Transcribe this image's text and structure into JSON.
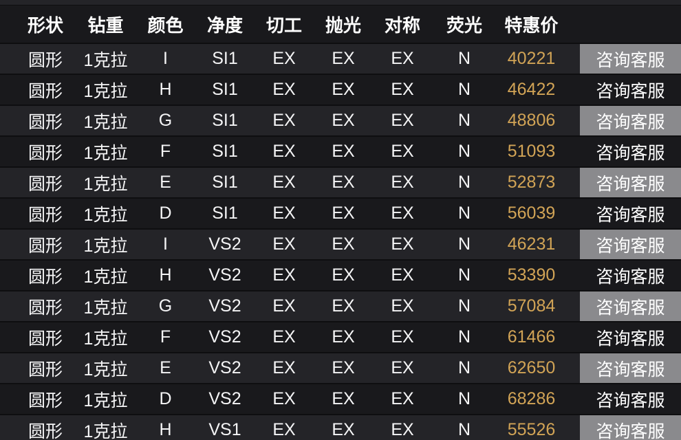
{
  "colors": {
    "row_bg": "#19191c",
    "row_alt_bg": "#242428",
    "divider": "#0e0e10",
    "button_bg": "#8a8a8d",
    "price_text": "#d2a456",
    "body_text": "#f5f5f6",
    "header_text": "#ffffff"
  },
  "table": {
    "columns": [
      {
        "key": "shape",
        "label": "形状"
      },
      {
        "key": "carat",
        "label": "钻重"
      },
      {
        "key": "color",
        "label": "颜色"
      },
      {
        "key": "clarity",
        "label": "净度"
      },
      {
        "key": "cut",
        "label": "切工"
      },
      {
        "key": "polish",
        "label": "抛光"
      },
      {
        "key": "symmetry",
        "label": "对称"
      },
      {
        "key": "fluorescence",
        "label": "荧光"
      },
      {
        "key": "price",
        "label": "特惠价"
      },
      {
        "key": "action",
        "label": ""
      }
    ],
    "action_label": "咨询客服",
    "rows": [
      {
        "shape": "圆形",
        "carat": "1克拉",
        "color": "I",
        "clarity": "SI1",
        "cut": "EX",
        "polish": "EX",
        "symmetry": "EX",
        "fluorescence": "N",
        "price": "40221"
      },
      {
        "shape": "圆形",
        "carat": "1克拉",
        "color": "H",
        "clarity": "SI1",
        "cut": "EX",
        "polish": "EX",
        "symmetry": "EX",
        "fluorescence": "N",
        "price": "46422"
      },
      {
        "shape": "圆形",
        "carat": "1克拉",
        "color": "G",
        "clarity": "SI1",
        "cut": "EX",
        "polish": "EX",
        "symmetry": "EX",
        "fluorescence": "N",
        "price": "48806"
      },
      {
        "shape": "圆形",
        "carat": "1克拉",
        "color": "F",
        "clarity": "SI1",
        "cut": "EX",
        "polish": "EX",
        "symmetry": "EX",
        "fluorescence": "N",
        "price": "51093"
      },
      {
        "shape": "圆形",
        "carat": "1克拉",
        "color": "E",
        "clarity": "SI1",
        "cut": "EX",
        "polish": "EX",
        "symmetry": "EX",
        "fluorescence": "N",
        "price": "52873"
      },
      {
        "shape": "圆形",
        "carat": "1克拉",
        "color": "D",
        "clarity": "SI1",
        "cut": "EX",
        "polish": "EX",
        "symmetry": "EX",
        "fluorescence": "N",
        "price": "56039"
      },
      {
        "shape": "圆形",
        "carat": "1克拉",
        "color": "I",
        "clarity": "VS2",
        "cut": "EX",
        "polish": "EX",
        "symmetry": "EX",
        "fluorescence": "N",
        "price": "46231"
      },
      {
        "shape": "圆形",
        "carat": "1克拉",
        "color": "H",
        "clarity": "VS2",
        "cut": "EX",
        "polish": "EX",
        "symmetry": "EX",
        "fluorescence": "N",
        "price": "53390"
      },
      {
        "shape": "圆形",
        "carat": "1克拉",
        "color": "G",
        "clarity": "VS2",
        "cut": "EX",
        "polish": "EX",
        "symmetry": "EX",
        "fluorescence": "N",
        "price": "57084"
      },
      {
        "shape": "圆形",
        "carat": "1克拉",
        "color": "F",
        "clarity": "VS2",
        "cut": "EX",
        "polish": "EX",
        "symmetry": "EX",
        "fluorescence": "N",
        "price": "61466"
      },
      {
        "shape": "圆形",
        "carat": "1克拉",
        "color": "E",
        "clarity": "VS2",
        "cut": "EX",
        "polish": "EX",
        "symmetry": "EX",
        "fluorescence": "N",
        "price": "62650"
      },
      {
        "shape": "圆形",
        "carat": "1克拉",
        "color": "D",
        "clarity": "VS2",
        "cut": "EX",
        "polish": "EX",
        "symmetry": "EX",
        "fluorescence": "N",
        "price": "68286"
      },
      {
        "shape": "圆形",
        "carat": "1克拉",
        "color": "H",
        "clarity": "VS1",
        "cut": "EX",
        "polish": "EX",
        "symmetry": "EX",
        "fluorescence": "N",
        "price": "55526"
      }
    ]
  }
}
